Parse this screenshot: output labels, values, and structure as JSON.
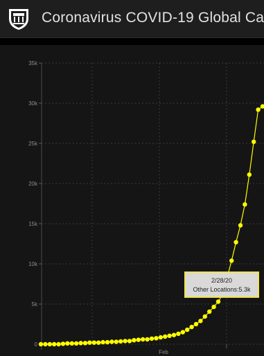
{
  "header": {
    "title": "Coronavirus COVID-19 Global Ca...",
    "logo_icon": "university-shield-icon"
  },
  "colors": {
    "background": "#161616",
    "series": "#ffff00",
    "grid": "#3a3a3a",
    "tick_text": "#8c8c8c"
  },
  "tooltip": {
    "date": "2/28/20",
    "text": "Other Locations:5.3k"
  },
  "chart_data": {
    "type": "line",
    "ylim": [
      0,
      35000
    ],
    "yticks": [
      0,
      5000,
      10000,
      15000,
      20000,
      25000,
      30000,
      35000
    ],
    "ytick_labels": [
      "0",
      "5k",
      "10k",
      "15k",
      "20k",
      "25k",
      "30k",
      "35k"
    ],
    "x_tick_labels": [
      "Feb"
    ],
    "grid": true,
    "series": [
      {
        "values": [
          0,
          0,
          0,
          0,
          0,
          50,
          100,
          100,
          100,
          150,
          150,
          200,
          200,
          200,
          250,
          250,
          300,
          300,
          350,
          400,
          400,
          500,
          550,
          600,
          600,
          700,
          750,
          850,
          950,
          1050,
          1150,
          1300,
          1500,
          1800,
          2150,
          2500,
          2900,
          3450,
          4050,
          4650,
          5300,
          6250,
          8300,
          10400,
          12700,
          14800,
          17400,
          21100,
          25200,
          29200,
          29600
        ]
      }
    ]
  }
}
